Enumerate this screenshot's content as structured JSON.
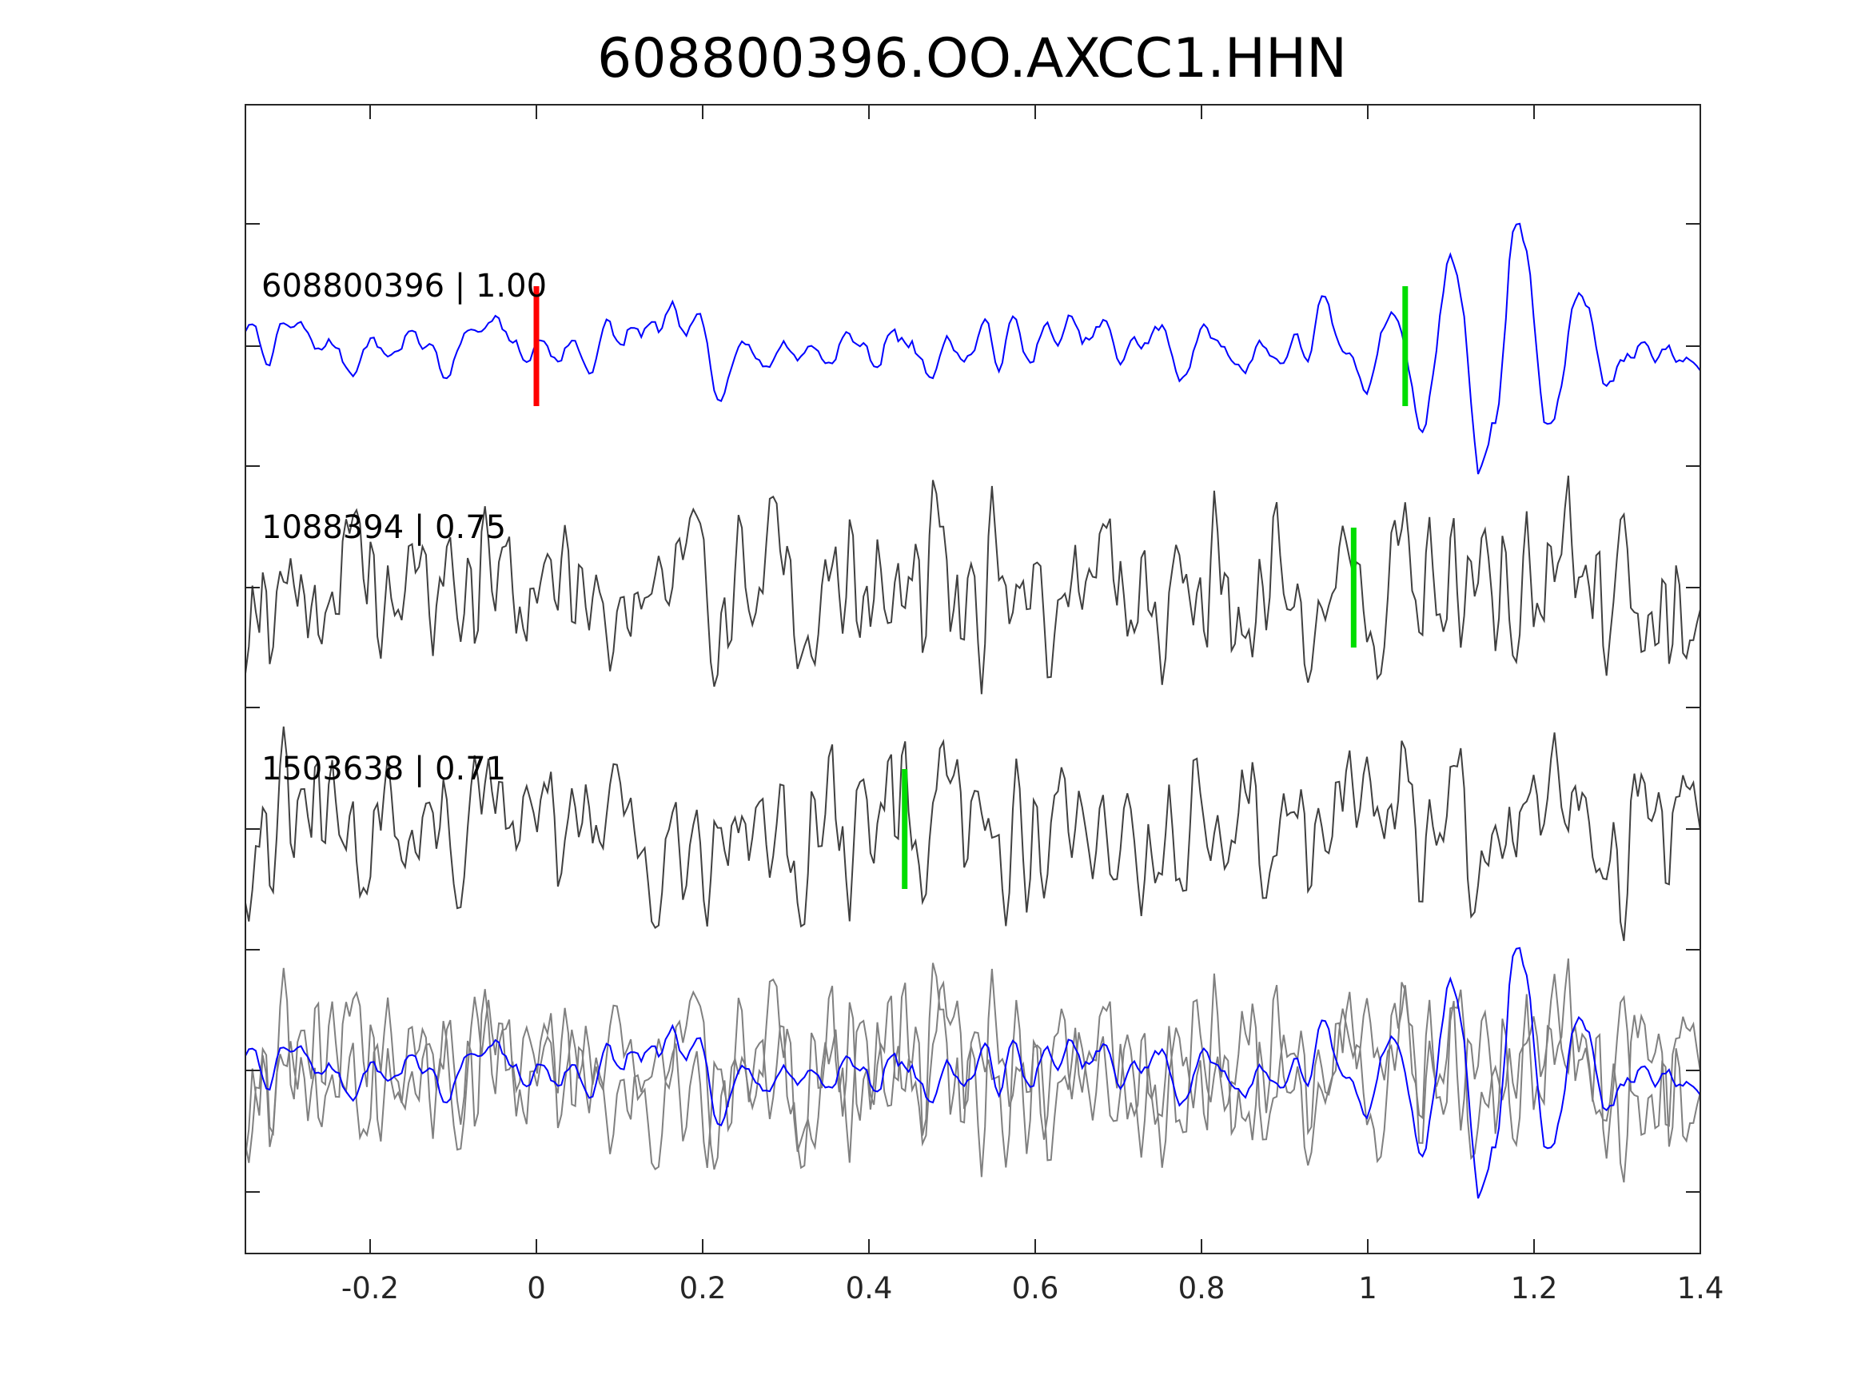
{
  "figure": {
    "title": "608800396.OO.AXCC1.HHN"
  },
  "chart_data": {
    "type": "line",
    "title": "608800396.OO.AXCC1.HHN",
    "xlabel": "",
    "ylabel": "",
    "xlim": [
      -0.35,
      1.4
    ],
    "x_ticks": [
      "-0.2",
      "0",
      "0.2",
      "0.4",
      "0.6",
      "0.8",
      "1",
      "1.2",
      "1.4"
    ],
    "x_tick_values": [
      -0.2,
      0,
      0.2,
      0.4,
      0.6,
      0.8,
      1.0,
      1.2,
      1.4
    ],
    "y_ticks_labeled": false,
    "grid": false,
    "legend": "none",
    "colors": {
      "template": "#0000ff",
      "detection": "#404040",
      "overlay_detection": "#808080",
      "p_pick": "#ff0000",
      "s_pick": "#00dd00",
      "axes": "#262626"
    },
    "traces": [
      {
        "label": "608800396 | 1.00",
        "id": "608800396",
        "correlation": 1.0,
        "color": "template",
        "picks": [
          {
            "phase": "P",
            "time": 0.0,
            "color": "#ff0000"
          },
          {
            "phase": "S",
            "time": 1.045,
            "color": "#00dd00"
          }
        ]
      },
      {
        "label": "1088394 | 0.75",
        "id": "1088394",
        "correlation": 0.75,
        "color": "detection",
        "picks": [
          {
            "phase": "S",
            "time": 0.983,
            "color": "#00dd00"
          }
        ]
      },
      {
        "label": "1503638 | 0.71",
        "id": "1503638",
        "correlation": 0.71,
        "color": "detection",
        "picks": [
          {
            "phase": "S",
            "time": 0.443,
            "color": "#00dd00"
          }
        ]
      },
      {
        "label": "",
        "note": "overlay of all traces",
        "overlay": true
      }
    ]
  }
}
